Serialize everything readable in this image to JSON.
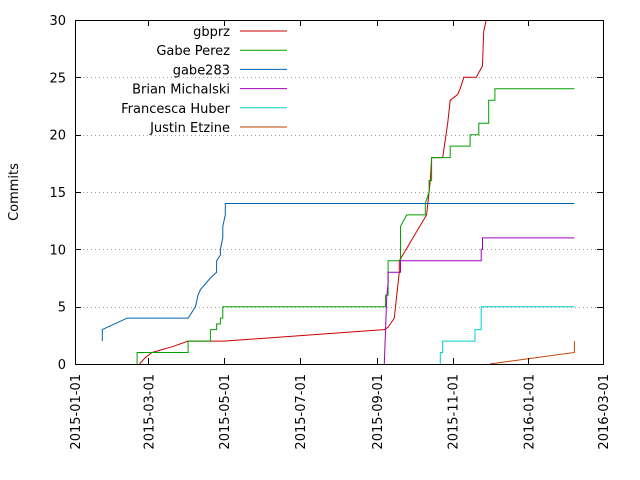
{
  "chart_data": {
    "type": "line",
    "title": "",
    "xlabel": "",
    "ylabel": "Commits",
    "x_type": "date",
    "xlim": [
      "2015-01-01",
      "2016-03-01"
    ],
    "ylim": [
      0,
      30
    ],
    "x_ticks": [
      "2015-01-01",
      "2015-03-01",
      "2015-05-01",
      "2015-07-01",
      "2015-09-01",
      "2015-11-01",
      "2016-01-01",
      "2016-03-01"
    ],
    "y_ticks": [
      0,
      5,
      10,
      15,
      20,
      25,
      30
    ],
    "grid": {
      "x": false,
      "y": true,
      "style": "dotted"
    },
    "legend_position": "top-left",
    "series": [
      {
        "name": "gbprz",
        "color": "#cc0000",
        "points": [
          [
            "2015-02-22",
            0
          ],
          [
            "2015-02-26",
            0.5
          ],
          [
            "2015-03-04",
            1
          ],
          [
            "2015-03-20",
            1.5
          ],
          [
            "2015-04-02",
            2
          ],
          [
            "2015-04-14",
            2
          ],
          [
            "2015-05-01",
            2
          ],
          [
            "2015-09-07",
            3
          ],
          [
            "2015-09-10",
            3.2
          ],
          [
            "2015-09-15",
            4
          ],
          [
            "2015-09-18",
            7
          ],
          [
            "2015-09-19",
            8
          ],
          [
            "2015-09-19",
            9
          ],
          [
            "2015-10-11",
            13
          ],
          [
            "2015-10-13",
            15
          ],
          [
            "2015-10-14",
            16
          ],
          [
            "2015-10-15",
            18
          ],
          [
            "2015-10-24",
            18
          ],
          [
            "2015-10-28",
            21
          ],
          [
            "2015-10-30",
            23
          ],
          [
            "2015-11-05",
            23.5
          ],
          [
            "2015-11-07",
            24
          ],
          [
            "2015-11-10",
            25
          ],
          [
            "2015-11-20",
            25
          ],
          [
            "2015-11-25",
            26
          ],
          [
            "2015-11-26",
            29
          ],
          [
            "2015-11-28",
            30
          ]
        ]
      },
      {
        "name": "Gabe Perez",
        "color": "#00a000",
        "points": [
          [
            "2015-02-20",
            0
          ],
          [
            "2015-02-20",
            1
          ],
          [
            "2015-04-02",
            1
          ],
          [
            "2015-04-02",
            2
          ],
          [
            "2015-04-20",
            2
          ],
          [
            "2015-04-20",
            3
          ],
          [
            "2015-04-25",
            3
          ],
          [
            "2015-04-25",
            3.5
          ],
          [
            "2015-04-28",
            3.5
          ],
          [
            "2015-04-28",
            4
          ],
          [
            "2015-04-30",
            4
          ],
          [
            "2015-04-30",
            5
          ],
          [
            "2015-09-08",
            5
          ],
          [
            "2015-09-08",
            6
          ],
          [
            "2015-09-10",
            6
          ],
          [
            "2015-09-10",
            9
          ],
          [
            "2015-09-20",
            9
          ],
          [
            "2015-09-20",
            12
          ],
          [
            "2015-09-25",
            13
          ],
          [
            "2015-10-10",
            13
          ],
          [
            "2015-10-10",
            14
          ],
          [
            "2015-10-13",
            15
          ],
          [
            "2015-10-13",
            16
          ],
          [
            "2015-10-15",
            16
          ],
          [
            "2015-10-15",
            18
          ],
          [
            "2015-10-30",
            18
          ],
          [
            "2015-10-30",
            19
          ],
          [
            "2015-11-15",
            19
          ],
          [
            "2015-11-15",
            20
          ],
          [
            "2015-11-22",
            20
          ],
          [
            "2015-11-22",
            21
          ],
          [
            "2015-11-30",
            21
          ],
          [
            "2015-11-30",
            23
          ],
          [
            "2015-12-05",
            23
          ],
          [
            "2015-12-05",
            24
          ],
          [
            "2015-12-17",
            24
          ],
          [
            "2016-02-07",
            24
          ]
        ]
      },
      {
        "name": "gabe283",
        "color": "#0060ad",
        "points": [
          [
            "2015-01-23",
            2
          ],
          [
            "2015-01-23",
            3
          ],
          [
            "2015-02-12",
            4
          ],
          [
            "2015-03-12",
            4
          ],
          [
            "2015-04-02",
            4
          ],
          [
            "2015-04-08",
            5
          ],
          [
            "2015-04-10",
            6
          ],
          [
            "2015-04-12",
            6.5
          ],
          [
            "2015-04-20",
            7.5
          ],
          [
            "2015-04-25",
            8
          ],
          [
            "2015-04-25",
            9
          ],
          [
            "2015-04-28",
            9.5
          ],
          [
            "2015-04-28",
            10
          ],
          [
            "2015-04-30",
            11
          ],
          [
            "2015-04-30",
            12
          ],
          [
            "2015-05-02",
            13
          ],
          [
            "2015-05-02",
            14
          ],
          [
            "2016-02-07",
            14
          ]
        ]
      },
      {
        "name": "Brian Michalski",
        "color": "#a000c0",
        "points": [
          [
            "2015-09-07",
            0
          ],
          [
            "2015-09-09",
            6
          ],
          [
            "2015-09-10",
            7
          ],
          [
            "2015-09-10",
            8
          ],
          [
            "2015-09-20",
            8
          ],
          [
            "2015-09-20",
            9
          ],
          [
            "2015-11-24",
            9
          ],
          [
            "2015-11-24",
            10
          ],
          [
            "2015-11-25",
            10
          ],
          [
            "2015-11-25",
            11
          ],
          [
            "2016-02-07",
            11
          ]
        ]
      },
      {
        "name": "Francesca Huber",
        "color": "#00d0d0",
        "points": [
          [
            "2015-10-22",
            0
          ],
          [
            "2015-10-22",
            1
          ],
          [
            "2015-10-24",
            1
          ],
          [
            "2015-10-24",
            2
          ],
          [
            "2015-11-19",
            2
          ],
          [
            "2015-11-19",
            3
          ],
          [
            "2015-11-24",
            3
          ],
          [
            "2015-11-24",
            5
          ],
          [
            "2016-02-07",
            5
          ]
        ]
      },
      {
        "name": "Justin Etzine",
        "color": "#c04000",
        "points": [
          [
            "2015-12-01",
            0
          ],
          [
            "2016-02-07",
            1
          ],
          [
            "2016-02-07",
            2
          ]
        ]
      }
    ]
  }
}
